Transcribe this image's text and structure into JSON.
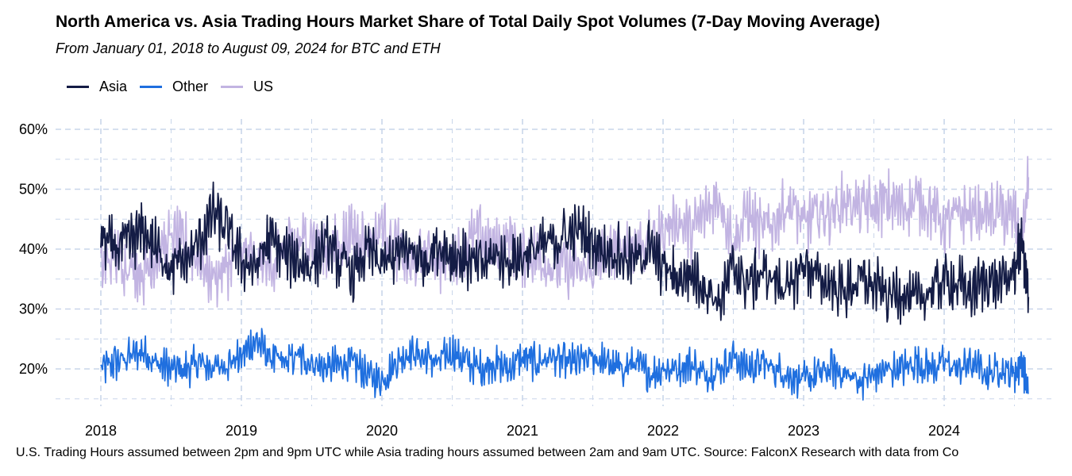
{
  "title": "North America vs. Asia Trading Hours Market Share of Total Daily Spot Volumes (7-Day Moving Average)",
  "subtitle": "From January 01, 2018 to August 09, 2024 for BTC and ETH",
  "caption": "U.S. Trading Hours assumed between 2pm and 9pm UTC while Asia trading hours assumed between 2am and 9am UTC. Source: FalconX Research with data from Co",
  "legend": [
    {
      "label": "Asia",
      "color": "#141c45"
    },
    {
      "label": "Other",
      "color": "#1f6fdf"
    },
    {
      "label": "US",
      "color": "#c2b4e2"
    }
  ],
  "chart_data": {
    "type": "line",
    "title": "North America vs. Asia Trading Hours Market Share of Total Daily Spot Volumes (7-Day Moving Average)",
    "xlabel": "",
    "ylabel": "",
    "xlim": [
      2018.0,
      2024.61
    ],
    "ylim": [
      15,
      60
    ],
    "x_ticks": [
      2018,
      2019,
      2020,
      2021,
      2022,
      2023,
      2024
    ],
    "x_tick_labels": [
      "2018",
      "2019",
      "2020",
      "2021",
      "2022",
      "2023",
      "2024"
    ],
    "y_ticks": [
      20,
      30,
      40,
      50,
      60
    ],
    "y_tick_labels": [
      "20%",
      "30%",
      "40%",
      "50%",
      "60%"
    ],
    "grid": true,
    "legend_position": "top-left",
    "series": [
      {
        "name": "Asia",
        "color": "#141c45",
        "x": [
          2018.0,
          2018.1,
          2018.2,
          2018.3,
          2018.4,
          2018.5,
          2018.6,
          2018.7,
          2018.8,
          2018.9,
          2019.0,
          2019.1,
          2019.2,
          2019.3,
          2019.4,
          2019.5,
          2019.6,
          2019.7,
          2019.8,
          2019.9,
          2020.0,
          2020.1,
          2020.2,
          2020.3,
          2020.4,
          2020.5,
          2020.6,
          2020.7,
          2020.8,
          2020.9,
          2021.0,
          2021.1,
          2021.2,
          2021.3,
          2021.4,
          2021.5,
          2021.6,
          2021.7,
          2021.8,
          2021.9,
          2022.0,
          2022.1,
          2022.2,
          2022.3,
          2022.4,
          2022.5,
          2022.6,
          2022.7,
          2022.8,
          2022.9,
          2023.0,
          2023.1,
          2023.2,
          2023.3,
          2023.4,
          2023.5,
          2023.6,
          2023.7,
          2023.8,
          2023.9,
          2024.0,
          2024.1,
          2024.2,
          2024.3,
          2024.4,
          2024.5,
          2024.55,
          2024.6
        ],
        "y": [
          42,
          40,
          41,
          43,
          40,
          37,
          38,
          41,
          46,
          43,
          38,
          37,
          42,
          39,
          38,
          37,
          41,
          38,
          36,
          40,
          37,
          39,
          40,
          38,
          41,
          39,
          38,
          37,
          39,
          38,
          39,
          40,
          41,
          42,
          43,
          41,
          40,
          39,
          38,
          40,
          37,
          35,
          36,
          34,
          31,
          37,
          34,
          36,
          35,
          33,
          38,
          35,
          34,
          33,
          35,
          34,
          32,
          33,
          31,
          33,
          35,
          34,
          33,
          35,
          34,
          36,
          42,
          32
        ]
      },
      {
        "name": "Other",
        "color": "#1f6fdf",
        "x": [
          2018.0,
          2018.1,
          2018.2,
          2018.3,
          2018.4,
          2018.5,
          2018.6,
          2018.7,
          2018.8,
          2018.9,
          2019.0,
          2019.1,
          2019.2,
          2019.3,
          2019.4,
          2019.5,
          2019.6,
          2019.7,
          2019.8,
          2019.9,
          2020.0,
          2020.1,
          2020.2,
          2020.3,
          2020.4,
          2020.5,
          2020.6,
          2020.7,
          2020.8,
          2020.9,
          2021.0,
          2021.1,
          2021.2,
          2021.3,
          2021.4,
          2021.5,
          2021.6,
          2021.7,
          2021.8,
          2021.9,
          2022.0,
          2022.1,
          2022.2,
          2022.3,
          2022.4,
          2022.5,
          2022.6,
          2022.7,
          2022.8,
          2022.9,
          2023.0,
          2023.1,
          2023.2,
          2023.3,
          2023.4,
          2023.5,
          2023.6,
          2023.7,
          2023.8,
          2023.9,
          2024.0,
          2024.1,
          2024.2,
          2024.3,
          2024.4,
          2024.5,
          2024.55,
          2024.6
        ],
        "y": [
          20,
          21,
          22,
          23,
          21,
          20,
          20,
          21,
          20,
          21,
          22,
          25,
          22,
          21,
          22,
          21,
          20,
          21,
          21,
          19,
          18,
          21,
          23,
          22,
          21,
          23,
          21,
          20,
          21,
          20,
          22,
          21,
          22,
          21,
          21,
          22,
          21,
          20,
          21,
          19,
          20,
          20,
          21,
          19,
          20,
          22,
          20,
          21,
          20,
          19,
          18,
          19,
          20,
          19,
          18,
          19,
          20,
          20,
          21,
          20,
          21,
          20,
          21,
          19,
          20,
          19,
          21,
          16
        ]
      },
      {
        "name": "US",
        "color": "#c2b4e2",
        "x": [
          2018.0,
          2018.1,
          2018.2,
          2018.3,
          2018.4,
          2018.5,
          2018.6,
          2018.7,
          2018.8,
          2018.9,
          2019.0,
          2019.1,
          2019.2,
          2019.3,
          2019.4,
          2019.5,
          2019.6,
          2019.7,
          2019.8,
          2019.9,
          2020.0,
          2020.1,
          2020.2,
          2020.3,
          2020.4,
          2020.5,
          2020.6,
          2020.7,
          2020.8,
          2020.9,
          2021.0,
          2021.1,
          2021.2,
          2021.3,
          2021.4,
          2021.5,
          2021.6,
          2021.7,
          2021.8,
          2021.9,
          2022.0,
          2022.1,
          2022.2,
          2022.3,
          2022.4,
          2022.5,
          2022.6,
          2022.7,
          2022.8,
          2022.9,
          2023.0,
          2023.1,
          2023.2,
          2023.3,
          2023.4,
          2023.5,
          2023.6,
          2023.7,
          2023.8,
          2023.9,
          2024.0,
          2024.1,
          2024.2,
          2024.3,
          2024.4,
          2024.5,
          2024.55,
          2024.6
        ],
        "y": [
          37,
          39,
          37,
          36,
          39,
          42,
          41,
          38,
          35,
          37,
          40,
          38,
          37,
          40,
          41,
          42,
          40,
          41,
          43,
          41,
          44,
          40,
          37,
          40,
          38,
          38,
          41,
          42,
          40,
          42,
          39,
          39,
          37,
          37,
          36,
          37,
          39,
          41,
          41,
          41,
          43,
          45,
          43,
          46,
          49,
          41,
          46,
          43,
          45,
          48,
          44,
          46,
          46,
          48,
          47,
          47,
          48,
          47,
          48,
          47,
          44,
          46,
          46,
          46,
          46,
          45,
          40,
          52
        ]
      }
    ]
  }
}
